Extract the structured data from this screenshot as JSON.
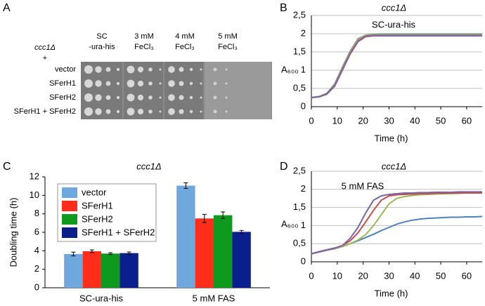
{
  "panel_labels": [
    "A",
    "B",
    "C",
    "D"
  ],
  "plate": {
    "strain": "ccc1Δ",
    "plus": "+",
    "rows": [
      "vector",
      "SFerH1",
      "SFerH2",
      "SFerH1 + SFerH2"
    ],
    "columns": [
      [
        "SC",
        "-ura-his"
      ],
      [
        "3 mM",
        "FeCl₃"
      ],
      [
        "4 mM",
        "FeCl₃"
      ],
      [
        "5 mM",
        "FeCl₃"
      ]
    ]
  },
  "chart_data": [
    {
      "type": "line",
      "title": "ccc1Δ",
      "annotation": "SC-ura-his",
      "x_label": "Time (h)",
      "y_label": "A₆₀₀",
      "x": [
        0,
        3,
        6,
        9,
        12,
        15,
        18,
        21,
        24,
        27,
        30,
        33,
        36,
        39,
        42,
        45,
        48,
        51,
        54,
        57,
        60,
        63,
        66
      ],
      "xlim": [
        0,
        66
      ],
      "xticks": [
        0,
        10,
        20,
        30,
        40,
        50,
        60
      ],
      "ylim": [
        0,
        2.5
      ],
      "yticks": [
        0,
        {
          "value": 0.5,
          "label": "0,5"
        },
        1,
        {
          "value": 1.5,
          "label": "1,5"
        },
        2,
        {
          "value": 2.5,
          "label": "2,5"
        }
      ],
      "grid": true,
      "series": [
        {
          "color": "#4f81bd",
          "values": [
            0.25,
            0.28,
            0.37,
            0.62,
            1.08,
            1.52,
            1.86,
            1.96,
            1.98,
            1.99,
            1.99,
            1.99,
            1.99,
            1.99,
            1.99,
            1.99,
            1.99,
            1.99,
            1.99,
            1.99,
            1.99,
            1.99,
            1.99
          ]
        },
        {
          "color": "#9bbb59",
          "values": [
            0.25,
            0.28,
            0.36,
            0.6,
            1.05,
            1.5,
            1.84,
            1.95,
            1.97,
            1.97,
            1.97,
            1.97,
            1.97,
            1.97,
            1.97,
            1.97,
            1.97,
            1.97,
            1.97,
            1.97,
            1.97,
            1.97,
            1.97
          ]
        },
        {
          "color": "#c0504d",
          "values": [
            0.25,
            0.27,
            0.35,
            0.58,
            1.02,
            1.46,
            1.8,
            1.93,
            1.95,
            1.95,
            1.95,
            1.95,
            1.95,
            1.95,
            1.95,
            1.95,
            1.95,
            1.95,
            1.95,
            1.95,
            1.95,
            1.95,
            1.95
          ]
        },
        {
          "color": "#8064a2",
          "values": [
            0.25,
            0.27,
            0.34,
            0.56,
            1.0,
            1.44,
            1.78,
            1.92,
            1.94,
            1.94,
            1.94,
            1.94,
            1.94,
            1.94,
            1.94,
            1.94,
            1.94,
            1.94,
            1.94,
            1.94,
            1.94,
            1.94,
            1.94
          ]
        }
      ]
    },
    {
      "type": "line",
      "title": "ccc1Δ",
      "annotation": "5 mM FAS",
      "x_label": "Time (h)",
      "y_label": "A₆₀₀",
      "x": [
        0,
        3,
        6,
        9,
        12,
        15,
        18,
        21,
        24,
        27,
        30,
        33,
        36,
        39,
        42,
        45,
        48,
        51,
        54,
        57,
        60,
        63,
        66
      ],
      "xlim": [
        0,
        66
      ],
      "xticks": [
        0,
        10,
        20,
        30,
        40,
        50,
        60
      ],
      "ylim": [
        0,
        2.5
      ],
      "yticks": [
        0,
        {
          "value": 0.5,
          "label": "0,5"
        },
        1,
        {
          "value": 1.5,
          "label": "1,5"
        },
        2,
        {
          "value": 2.5,
          "label": "2,5"
        }
      ],
      "grid": true,
      "series": [
        {
          "color": "#4f81bd",
          "values": [
            0.22,
            0.27,
            0.32,
            0.36,
            0.42,
            0.5,
            0.58,
            0.67,
            0.76,
            0.86,
            0.95,
            1.04,
            1.1,
            1.15,
            1.18,
            1.2,
            1.21,
            1.22,
            1.23,
            1.23,
            1.24,
            1.24,
            1.25
          ]
        },
        {
          "color": "#9bbb59",
          "values": [
            0.22,
            0.28,
            0.33,
            0.37,
            0.42,
            0.5,
            0.6,
            0.75,
            1.0,
            1.3,
            1.6,
            1.75,
            1.8,
            1.83,
            1.85,
            1.86,
            1.87,
            1.88,
            1.88,
            1.89,
            1.9,
            1.9,
            1.9
          ]
        },
        {
          "color": "#c0504d",
          "values": [
            0.22,
            0.28,
            0.33,
            0.38,
            0.45,
            0.58,
            0.8,
            1.1,
            1.42,
            1.7,
            1.82,
            1.85,
            1.86,
            1.87,
            1.88,
            1.88,
            1.89,
            1.89,
            1.9,
            1.9,
            1.9,
            1.9,
            1.9
          ]
        },
        {
          "color": "#8064a2",
          "values": [
            0.22,
            0.28,
            0.33,
            0.38,
            0.45,
            0.65,
            0.95,
            1.35,
            1.7,
            1.82,
            1.86,
            1.88,
            1.9,
            1.9,
            1.91,
            1.91,
            1.92,
            1.92,
            1.92,
            1.93,
            1.93,
            1.93,
            1.93
          ]
        }
      ]
    },
    {
      "type": "bar",
      "title": "ccc1Δ",
      "y_label": "Doubling time (h)",
      "categories": [
        "SC-ura-his",
        "5 mM FAS"
      ],
      "ylim": [
        0,
        12
      ],
      "yticks": [
        0,
        2,
        4,
        6,
        8,
        10,
        12
      ],
      "legend": "upper-left",
      "series": [
        {
          "name": "vector",
          "color": "#6fa8dc",
          "values": [
            3.65,
            11.05
          ],
          "errors": [
            0.2,
            0.3
          ]
        },
        {
          "name": "SFerH1",
          "color": "#ff2d1a",
          "values": [
            3.95,
            7.5
          ],
          "errors": [
            0.15,
            0.45
          ]
        },
        {
          "name": "SFerH2",
          "color": "#0e9a1e",
          "values": [
            3.7,
            7.85
          ],
          "errors": [
            0.1,
            0.35
          ]
        },
        {
          "name": "SFerH1 + SFerH2",
          "color": "#0a1e8c",
          "values": [
            3.75,
            6.05
          ],
          "errors": [
            0.12,
            0.15
          ]
        }
      ]
    }
  ]
}
